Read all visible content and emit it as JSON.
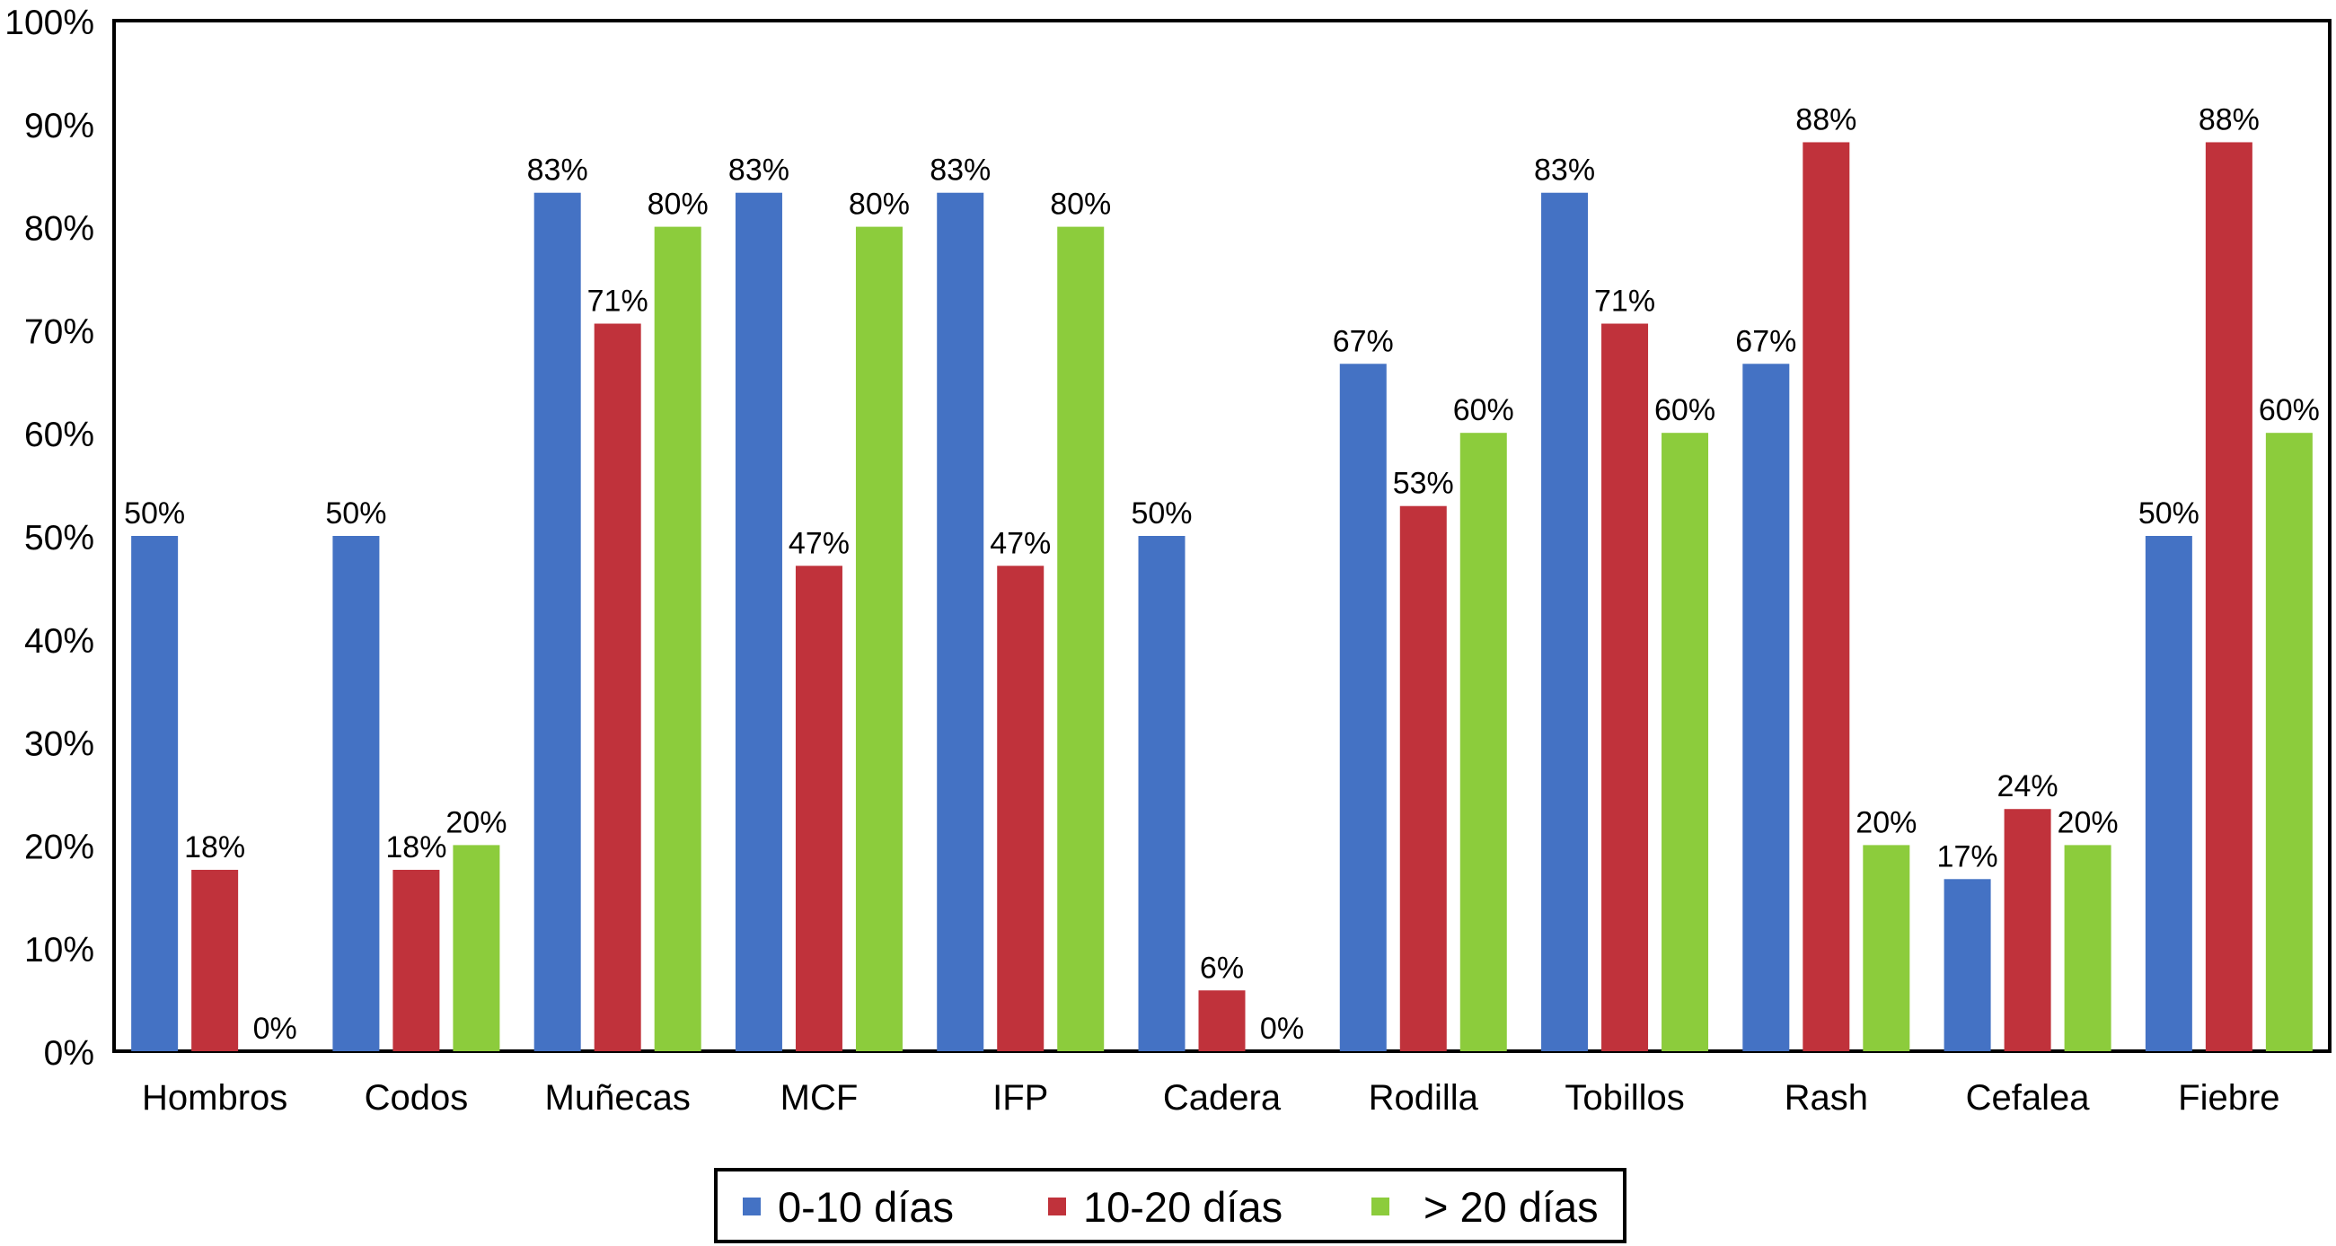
{
  "chart_data": {
    "type": "bar",
    "title": "",
    "xlabel": "",
    "ylabel": "",
    "ylim": [
      0,
      100
    ],
    "y_ticks": [
      "0%",
      "10%",
      "20%",
      "30%",
      "40%",
      "50%",
      "60%",
      "70%",
      "80%",
      "90%",
      "100%"
    ],
    "grid": false,
    "legend_position": "bottom",
    "categories": [
      "Hombros",
      "Codos",
      "Muñecas",
      "MCF",
      "IFP",
      "Cadera",
      "Rodilla",
      "Tobillos",
      "Rash",
      "Cefalea",
      "Fiebre"
    ],
    "series": [
      {
        "name": "0-10 días",
        "color": "#4472C4",
        "values": [
          50,
          50,
          83.3,
          83.3,
          83.3,
          50,
          66.7,
          83.3,
          66.7,
          16.7,
          50
        ],
        "labels": [
          "50%",
          "50%",
          "83%",
          "83%",
          "83%",
          "50%",
          "67%",
          "83%",
          "67%",
          "17%",
          "50%"
        ]
      },
      {
        "name": "10-20 días",
        "color": "#C0323B",
        "values": [
          17.6,
          17.6,
          70.6,
          47.1,
          47.1,
          5.9,
          52.9,
          70.6,
          88.2,
          23.5,
          88.2
        ],
        "labels": [
          "18%",
          "18%",
          "71%",
          "47%",
          "47%",
          "6%",
          "53%",
          "71%",
          "88%",
          "24%",
          "88%"
        ]
      },
      {
        "name": "> 20 días",
        "color": "#8CCC3C",
        "values": [
          0,
          20,
          80,
          80,
          80,
          0,
          60,
          60,
          20,
          20,
          60
        ],
        "labels": [
          "0%",
          "20%",
          "80%",
          "80%",
          "80%",
          "0%",
          "60%",
          "60%",
          "20%",
          "20%",
          "60%"
        ]
      }
    ]
  }
}
